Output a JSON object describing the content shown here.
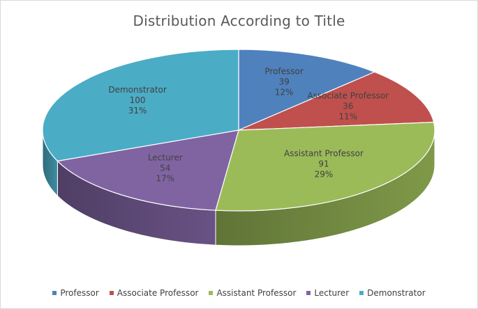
{
  "chart_data": {
    "type": "pie",
    "title": "Distribution According to Title",
    "categories": [
      "Professor",
      "Associate Professor",
      "Assistant Professor",
      "Lecturer",
      "Demonstrator"
    ],
    "values": [
      39,
      36,
      91,
      54,
      100
    ],
    "percent_labels": [
      "12%",
      "11%",
      "29%",
      "17%",
      "31%"
    ],
    "colors": [
      "#4F81BD",
      "#C0504D",
      "#9BBB59",
      "#8064A2",
      "#4BACC6"
    ],
    "legend_position": "bottom",
    "style": "3d"
  }
}
